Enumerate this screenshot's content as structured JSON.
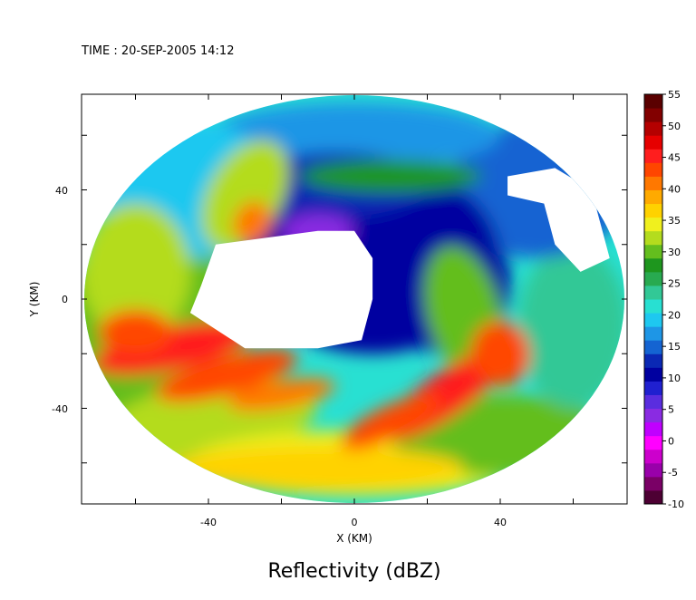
{
  "timestamp_label": "TIME : 20-SEP-2005 14:12",
  "chart_data": {
    "type": "heatmap",
    "title": "Reflectivity (dBZ)",
    "xlabel": "X (KM)",
    "ylabel": "Y (KM)",
    "xlim": [
      -75,
      75
    ],
    "ylim": [
      -75,
      75
    ],
    "x_ticks": [
      -40,
      0,
      40
    ],
    "y_ticks": [
      40,
      0,
      -40
    ],
    "colorbar": {
      "vmin": -10,
      "vmax": 55,
      "tick_labels": [
        "55",
        "50",
        "45",
        "40",
        "35",
        "30",
        "25",
        "20",
        "15",
        "10",
        "5",
        "0",
        "-5",
        "-10"
      ],
      "colors": [
        "#4d0033",
        "#7a0066",
        "#9900aa",
        "#cc00cc",
        "#ff00ff",
        "#c000ff",
        "#8a2be2",
        "#5a2ddf",
        "#2020d0",
        "#0000a0",
        "#0a28b4",
        "#1464d2",
        "#1e96e6",
        "#1ec8f0",
        "#28e0d2",
        "#32c896",
        "#28aa50",
        "#1e961e",
        "#64be1e",
        "#b4dc1e",
        "#f0f01e",
        "#ffd200",
        "#ffaa00",
        "#ff7800",
        "#ff4600",
        "#ff1e1e",
        "#e60000",
        "#b40000",
        "#820000",
        "#5a0000"
      ]
    },
    "scan_domain": {
      "center": [
        0,
        0
      ],
      "radius_x_km": 74,
      "radius_y_km": 74
    },
    "no_echo_region_center_km": [
      -10,
      15
    ],
    "features": [
      {
        "label": "strong band southwest",
        "approx_dbz": 45
      },
      {
        "label": "strong band southeast",
        "approx_dbz": 45
      },
      {
        "label": "weak echo north",
        "approx_dbz": 10
      }
    ]
  }
}
